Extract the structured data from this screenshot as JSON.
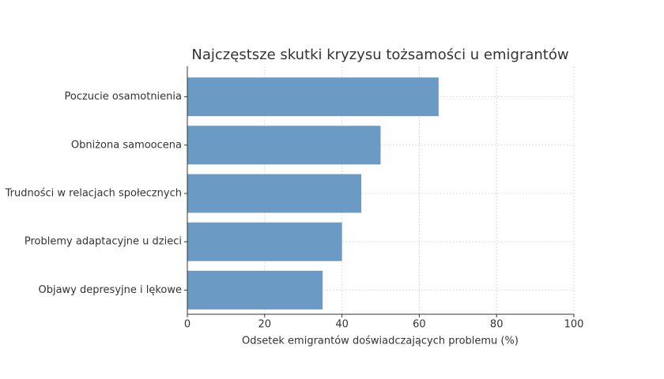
{
  "chart_data": {
    "type": "hbar",
    "title": "Najczęstsze skutki kryzysu tożsamości u emigrantów",
    "x_label": "Odsetek emigrantów doświadczających problemu (%)",
    "categories": [
      "Poczucie osamotnienia",
      "Obniżona samoocena",
      "Trudności w relacjach społecznych",
      "Problemy adaptacyjne u dzieci",
      "Objawy depresyjne i lękowe"
    ],
    "values": [
      65,
      50,
      45,
      40,
      35
    ],
    "color": "#6b9ac4",
    "xlim": [
      0,
      100
    ],
    "xticks": [
      0,
      20,
      40,
      60,
      80,
      100
    ],
    "grid": true
  }
}
